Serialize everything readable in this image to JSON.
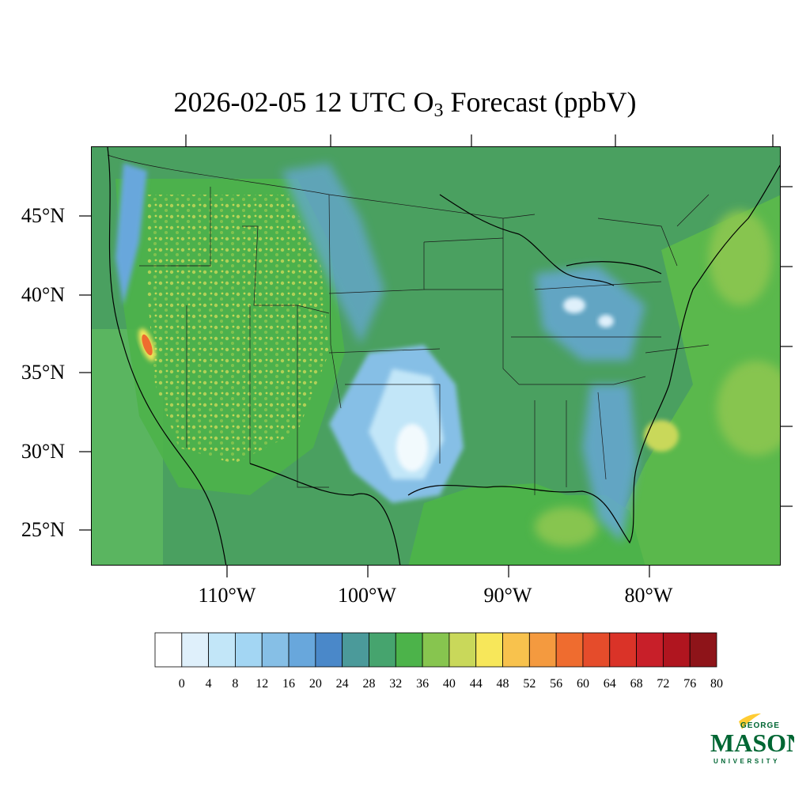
{
  "title": {
    "prefix": "2026-02-05 12 UTC O",
    "subscript": "3",
    "suffix": " Forecast (ppbV)"
  },
  "map": {
    "region": "Contiguous United States",
    "variable": "O3",
    "units": "ppbV",
    "lat_ticks": [
      {
        "value": 45,
        "label": "45°N"
      },
      {
        "value": 40,
        "label": "40°N"
      },
      {
        "value": 35,
        "label": "35°N"
      },
      {
        "value": 30,
        "label": "30°N"
      },
      {
        "value": 25,
        "label": "25°N"
      }
    ],
    "lon_ticks": [
      {
        "value": -110,
        "label": "110°W"
      },
      {
        "value": -100,
        "label": "100°W"
      },
      {
        "value": -90,
        "label": "90°W"
      },
      {
        "value": -80,
        "label": "80°W"
      }
    ],
    "land_color": "#4aa060",
    "ocean_west_color": "#5ab560",
    "ocean_east_color": "#5aba4a"
  },
  "colorbar": {
    "levels": [
      0,
      4,
      8,
      12,
      16,
      20,
      24,
      28,
      32,
      36,
      40,
      44,
      48,
      52,
      56,
      60,
      64,
      68,
      72,
      76,
      80
    ],
    "colors": [
      "#ffffff",
      "#dff0fb",
      "#c2e6f8",
      "#a3d6f3",
      "#86bfe6",
      "#68a7dc",
      "#4a88c9",
      "#4b9a9a",
      "#46a46e",
      "#4cb34a",
      "#87c54f",
      "#c9d85a",
      "#f7e75a",
      "#f8c24d",
      "#f49a3f",
      "#ef6c2f",
      "#e54c2b",
      "#da3328",
      "#c81f29",
      "#b0151f",
      "#8e1419"
    ],
    "labels": [
      "0",
      "4",
      "8",
      "12",
      "16",
      "20",
      "24",
      "28",
      "32",
      "36",
      "40",
      "44",
      "48",
      "52",
      "56",
      "60",
      "64",
      "68",
      "72",
      "76",
      "80"
    ]
  },
  "logo": {
    "top_text": "GEORGE",
    "main_text": "MASON",
    "bottom_text": "UNIVERSITY",
    "brand_green": "#006633",
    "brand_gold": "#ffcc33"
  }
}
